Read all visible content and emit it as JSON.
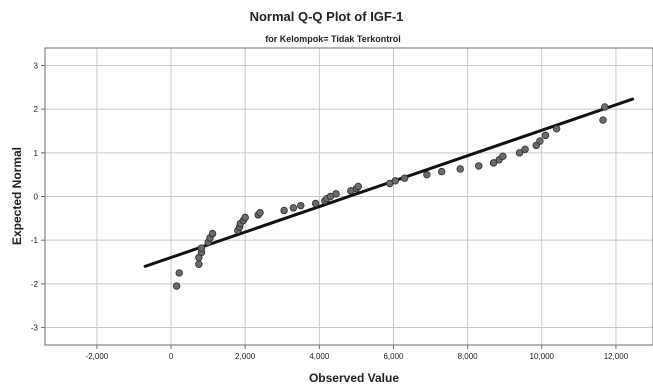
{
  "chart_data": {
    "type": "scatter",
    "title": "Normal Q-Q Plot of IGF-1",
    "subtitle": "for Kelompok= Tidak Terkontrol",
    "xlabel": "Observed Value",
    "ylabel": "Expected Normal",
    "xlim": [
      -3400,
      13000
    ],
    "ylim": [
      -3.4,
      3.4
    ],
    "x_ticks": [
      -2000,
      0,
      2000,
      4000,
      6000,
      8000,
      10000,
      12000
    ],
    "x_tick_labels": [
      "-2,000",
      "0",
      "2,000",
      "4,000",
      "6,000",
      "8,000",
      "10,000",
      "12,000"
    ],
    "y_ticks": [
      -3,
      -2,
      -1,
      0,
      1,
      2,
      3
    ],
    "y_tick_labels": [
      "-3",
      "-2",
      "-1",
      "0",
      "1",
      "2",
      "3"
    ],
    "grid": true,
    "reference_line": {
      "x": [
        -700,
        12450
      ],
      "y": [
        -1.6,
        2.23
      ]
    },
    "points": {
      "x": [
        150,
        220,
        750,
        750,
        820,
        820,
        1000,
        1050,
        1120,
        1800,
        1850,
        1870,
        1950,
        2000,
        2350,
        2400,
        3050,
        3300,
        3500,
        3900,
        4150,
        4200,
        4300,
        4450,
        4850,
        5000,
        5050,
        5900,
        6050,
        6300,
        6900,
        7300,
        7800,
        8300,
        8700,
        8850,
        8950,
        9400,
        9550,
        9850,
        9950,
        10100,
        10400,
        11650,
        11700
      ],
      "y": [
        -2.05,
        -1.75,
        -1.55,
        -1.4,
        -1.28,
        -1.18,
        -1.05,
        -0.95,
        -0.85,
        -0.78,
        -0.7,
        -0.62,
        -0.55,
        -0.48,
        -0.42,
        -0.37,
        -0.32,
        -0.26,
        -0.21,
        -0.16,
        -0.1,
        -0.05,
        0,
        0.06,
        0.13,
        0.18,
        0.23,
        0.3,
        0.36,
        0.42,
        0.5,
        0.57,
        0.63,
        0.7,
        0.77,
        0.84,
        0.92,
        1.0,
        1.08,
        1.17,
        1.27,
        1.4,
        1.55,
        1.75,
        2.05
      ]
    },
    "colors": {
      "point_fill": "#6b6b6b",
      "point_stroke": "#2a2a2a",
      "line": "#111111",
      "grid": "#c8c8c8",
      "axis": "#6e6e6e"
    }
  }
}
